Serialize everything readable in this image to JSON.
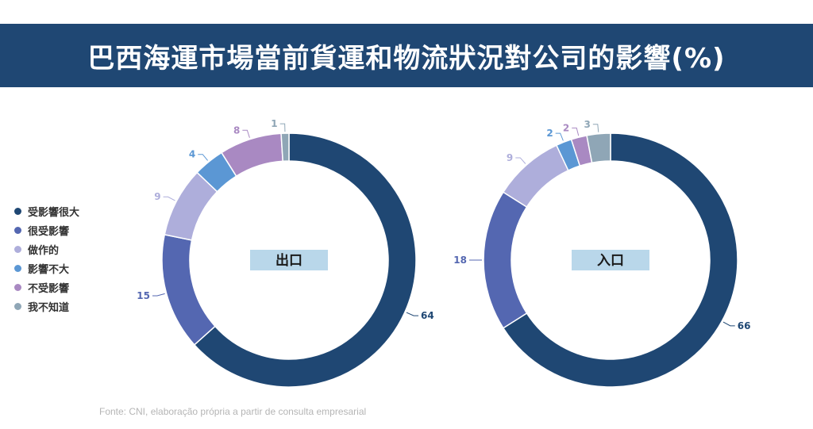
{
  "title": "巴西海運市場當前貨運和物流狀況對公司的影響(%)",
  "source": "Fonte: CNI, elaboração própria a partir de consulta empresarial",
  "legend": [
    {
      "label": "受影響很大",
      "color": "#1f4773"
    },
    {
      "label": "很受影響",
      "color": "#5467b1"
    },
    {
      "label": "做作的",
      "color": "#aeaedb"
    },
    {
      "label": "影響不大",
      "color": "#5b97d4"
    },
    {
      "label": "不受影響",
      "color": "#a989c2"
    },
    {
      "label": "我不知道",
      "color": "#8fa6b6"
    }
  ],
  "chart_data": [
    {
      "type": "pie",
      "title": "出口",
      "categories": [
        "受影響很大",
        "很受影響",
        "做作的",
        "影響不大",
        "不受影響",
        "我不知道"
      ],
      "values": [
        64,
        15,
        9,
        4,
        8,
        1
      ],
      "labels": [
        "64",
        "15",
        "9",
        "4",
        "8",
        "1"
      ]
    },
    {
      "type": "pie",
      "title": "入口",
      "categories": [
        "受影響很大",
        "很受影響",
        "做作的",
        "影響不大",
        "不受影響",
        "我不知道"
      ],
      "values": [
        66,
        18,
        9,
        2,
        2,
        3
      ],
      "labels": [
        "66",
        "18",
        "9",
        "2",
        "2",
        "3"
      ]
    }
  ]
}
